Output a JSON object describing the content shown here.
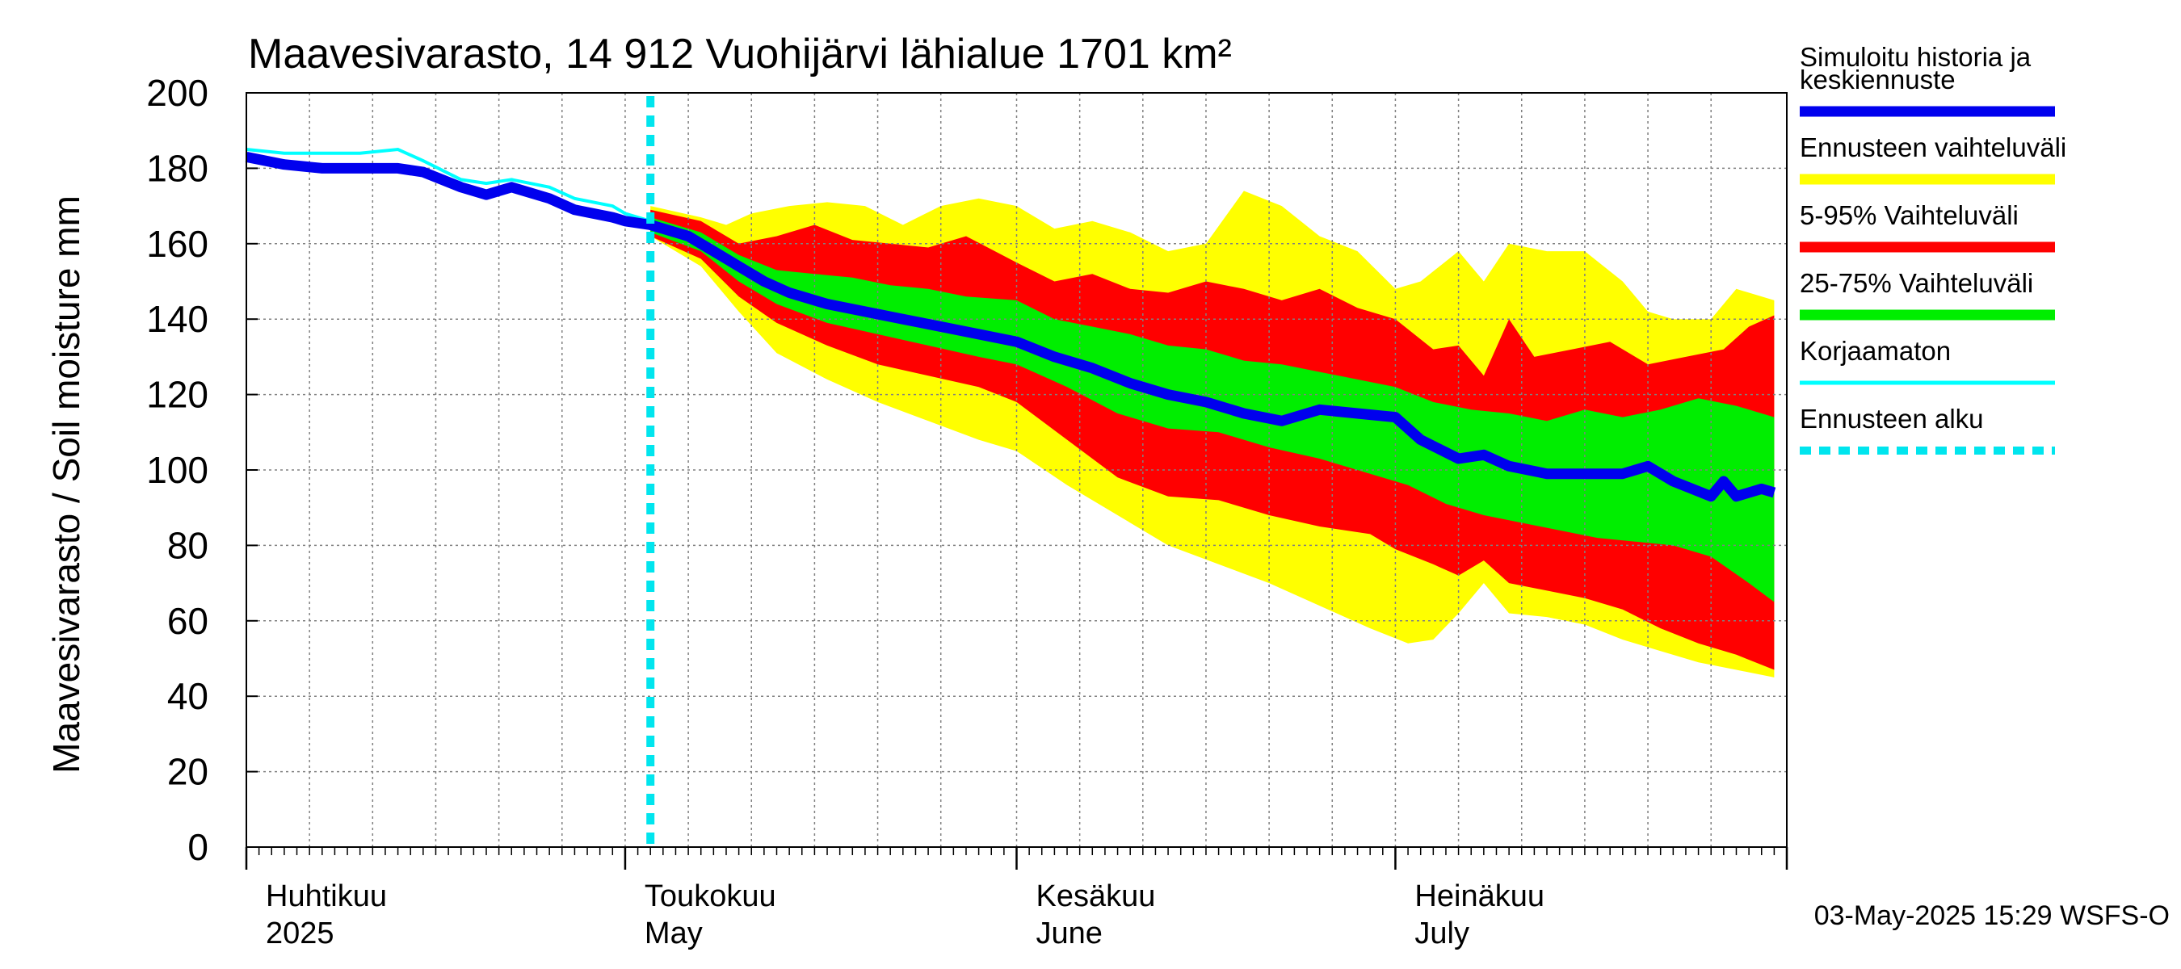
{
  "chart_data": {
    "type": "area",
    "title": "Maavesivarasto, 14 912 Vuohijärvi lähialue 1701 km²",
    "ylabel": "Maavesivarasto / Soil moisture   mm",
    "ylim": [
      0,
      200
    ],
    "yticks": [
      0,
      20,
      40,
      60,
      80,
      100,
      120,
      140,
      160,
      180,
      200
    ],
    "x_start": "2025-04-01",
    "x_end": "2025-07-31",
    "month_labels": [
      {
        "date": "2025-04-01",
        "fi": "Huhtikuu",
        "en": "2025"
      },
      {
        "date": "2025-05-01",
        "fi": "Toukokuu",
        "en": "May"
      },
      {
        "date": "2025-06-01",
        "fi": "Kesäkuu",
        "en": "June"
      },
      {
        "date": "2025-07-01",
        "fi": "Heinäkuu",
        "en": "July"
      }
    ],
    "forecast_start": "2025-05-03",
    "footer": "03-May-2025 15:29 WSFS-O",
    "legend": {
      "simulated": "Simuloitu historia ja keskiennuste",
      "range": "Ennusteen vaihteluväli",
      "p5_95": "5-95% Vaihteluväli",
      "p25_75": "25-75% Vaihteluväli",
      "uncorrected": "Korjaamaton",
      "forecast_start": "Ennusteen alku"
    },
    "colors": {
      "simulated": "#0000ee",
      "range": "#ffff00",
      "p5_95": "#ff0000",
      "p25_75": "#00ee00",
      "uncorrected": "#00ffff",
      "forecast_start": "#00e5ee",
      "grid": "#808080"
    },
    "series": [
      {
        "name": "Simuloitu historia ja keskiennuste",
        "points": [
          [
            "2025-04-01",
            183
          ],
          [
            "2025-04-04",
            181
          ],
          [
            "2025-04-07",
            180
          ],
          [
            "2025-04-10",
            180
          ],
          [
            "2025-04-13",
            180
          ],
          [
            "2025-04-15",
            179
          ],
          [
            "2025-04-18",
            175
          ],
          [
            "2025-04-20",
            173
          ],
          [
            "2025-04-22",
            175
          ],
          [
            "2025-04-25",
            172
          ],
          [
            "2025-04-27",
            169
          ],
          [
            "2025-04-30",
            167
          ],
          [
            "2025-05-01",
            166
          ],
          [
            "2025-05-03",
            165
          ],
          [
            "2025-05-06",
            162
          ],
          [
            "2025-05-08",
            158
          ],
          [
            "2025-05-10",
            154
          ],
          [
            "2025-05-12",
            150
          ],
          [
            "2025-05-14",
            147
          ],
          [
            "2025-05-17",
            144
          ],
          [
            "2025-05-20",
            142
          ],
          [
            "2025-05-23",
            140
          ],
          [
            "2025-05-26",
            138
          ],
          [
            "2025-05-29",
            136
          ],
          [
            "2025-06-01",
            134
          ],
          [
            "2025-06-04",
            130
          ],
          [
            "2025-06-07",
            127
          ],
          [
            "2025-06-10",
            123
          ],
          [
            "2025-06-13",
            120
          ],
          [
            "2025-06-16",
            118
          ],
          [
            "2025-06-19",
            115
          ],
          [
            "2025-06-22",
            113
          ],
          [
            "2025-06-25",
            116
          ],
          [
            "2025-06-28",
            115
          ],
          [
            "2025-07-01",
            114
          ],
          [
            "2025-07-03",
            108
          ],
          [
            "2025-07-06",
            103
          ],
          [
            "2025-07-08",
            104
          ],
          [
            "2025-07-10",
            101
          ],
          [
            "2025-07-13",
            99
          ],
          [
            "2025-07-16",
            99
          ],
          [
            "2025-07-19",
            99
          ],
          [
            "2025-07-21",
            101
          ],
          [
            "2025-07-23",
            97
          ],
          [
            "2025-07-26",
            93
          ],
          [
            "2025-07-27",
            97
          ],
          [
            "2025-07-28",
            93
          ],
          [
            "2025-07-30",
            95
          ],
          [
            "2025-07-31",
            94
          ]
        ]
      },
      {
        "name": "Korjaamaton",
        "points": [
          [
            "2025-04-01",
            185
          ],
          [
            "2025-04-04",
            184
          ],
          [
            "2025-04-07",
            184
          ],
          [
            "2025-04-10",
            184
          ],
          [
            "2025-04-13",
            185
          ],
          [
            "2025-04-15",
            182
          ],
          [
            "2025-04-18",
            177
          ],
          [
            "2025-04-20",
            176
          ],
          [
            "2025-04-22",
            177
          ],
          [
            "2025-04-25",
            175
          ],
          [
            "2025-04-27",
            172
          ],
          [
            "2025-04-30",
            170
          ],
          [
            "2025-05-01",
            168
          ],
          [
            "2025-05-03",
            166
          ]
        ]
      },
      {
        "name": "Ennusteen vaihteluväli",
        "upper": [
          [
            "2025-05-03",
            170
          ],
          [
            "2025-05-07",
            167
          ],
          [
            "2025-05-09",
            165
          ],
          [
            "2025-05-11",
            168
          ],
          [
            "2025-05-14",
            170
          ],
          [
            "2025-05-17",
            171
          ],
          [
            "2025-05-20",
            170
          ],
          [
            "2025-05-23",
            165
          ],
          [
            "2025-05-26",
            170
          ],
          [
            "2025-05-29",
            172
          ],
          [
            "2025-06-01",
            170
          ],
          [
            "2025-06-04",
            164
          ],
          [
            "2025-06-07",
            166
          ],
          [
            "2025-06-10",
            163
          ],
          [
            "2025-06-13",
            158
          ],
          [
            "2025-06-16",
            160
          ],
          [
            "2025-06-19",
            174
          ],
          [
            "2025-06-22",
            170
          ],
          [
            "2025-06-25",
            162
          ],
          [
            "2025-06-28",
            158
          ],
          [
            "2025-07-01",
            148
          ],
          [
            "2025-07-03",
            150
          ],
          [
            "2025-07-06",
            158
          ],
          [
            "2025-07-08",
            150
          ],
          [
            "2025-07-10",
            160
          ],
          [
            "2025-07-13",
            158
          ],
          [
            "2025-07-16",
            158
          ],
          [
            "2025-07-19",
            150
          ],
          [
            "2025-07-21",
            142
          ],
          [
            "2025-07-23",
            140
          ],
          [
            "2025-07-26",
            140
          ],
          [
            "2025-07-28",
            148
          ],
          [
            "2025-07-31",
            145
          ]
        ],
        "lower": [
          [
            "2025-05-03",
            162
          ],
          [
            "2025-05-07",
            154
          ],
          [
            "2025-05-10",
            142
          ],
          [
            "2025-05-13",
            131
          ],
          [
            "2025-05-17",
            124
          ],
          [
            "2025-05-21",
            118
          ],
          [
            "2025-05-25",
            113
          ],
          [
            "2025-05-29",
            108
          ],
          [
            "2025-06-01",
            105
          ],
          [
            "2025-06-05",
            96
          ],
          [
            "2025-06-09",
            88
          ],
          [
            "2025-06-13",
            80
          ],
          [
            "2025-06-17",
            75
          ],
          [
            "2025-06-21",
            70
          ],
          [
            "2025-06-25",
            64
          ],
          [
            "2025-06-29",
            58
          ],
          [
            "2025-07-02",
            54
          ],
          [
            "2025-07-04",
            55
          ],
          [
            "2025-07-06",
            62
          ],
          [
            "2025-07-08",
            70
          ],
          [
            "2025-07-10",
            62
          ],
          [
            "2025-07-13",
            61
          ],
          [
            "2025-07-16",
            59
          ],
          [
            "2025-07-19",
            55
          ],
          [
            "2025-07-22",
            52
          ],
          [
            "2025-07-25",
            49
          ],
          [
            "2025-07-28",
            47
          ],
          [
            "2025-07-31",
            45
          ]
        ]
      },
      {
        "name": "5-95% Vaihteluväli",
        "upper": [
          [
            "2025-05-03",
            169
          ],
          [
            "2025-05-07",
            166
          ],
          [
            "2025-05-10",
            160
          ],
          [
            "2025-05-13",
            162
          ],
          [
            "2025-05-16",
            165
          ],
          [
            "2025-05-19",
            161
          ],
          [
            "2025-05-22",
            160
          ],
          [
            "2025-05-25",
            159
          ],
          [
            "2025-05-28",
            162
          ],
          [
            "2025-06-01",
            155
          ],
          [
            "2025-06-04",
            150
          ],
          [
            "2025-06-07",
            152
          ],
          [
            "2025-06-10",
            148
          ],
          [
            "2025-06-13",
            147
          ],
          [
            "2025-06-16",
            150
          ],
          [
            "2025-06-19",
            148
          ],
          [
            "2025-06-22",
            145
          ],
          [
            "2025-06-25",
            148
          ],
          [
            "2025-06-28",
            143
          ],
          [
            "2025-07-01",
            140
          ],
          [
            "2025-07-04",
            132
          ],
          [
            "2025-07-06",
            133
          ],
          [
            "2025-07-08",
            125
          ],
          [
            "2025-07-10",
            140
          ],
          [
            "2025-07-12",
            130
          ],
          [
            "2025-07-15",
            132
          ],
          [
            "2025-07-18",
            134
          ],
          [
            "2025-07-21",
            128
          ],
          [
            "2025-07-24",
            130
          ],
          [
            "2025-07-27",
            132
          ],
          [
            "2025-07-29",
            138
          ],
          [
            "2025-07-31",
            141
          ]
        ],
        "lower": [
          [
            "2025-05-03",
            162
          ],
          [
            "2025-05-07",
            156
          ],
          [
            "2025-05-10",
            146
          ],
          [
            "2025-05-13",
            139
          ],
          [
            "2025-05-17",
            133
          ],
          [
            "2025-05-21",
            128
          ],
          [
            "2025-05-25",
            125
          ],
          [
            "2025-05-29",
            122
          ],
          [
            "2025-06-01",
            118
          ],
          [
            "2025-06-05",
            108
          ],
          [
            "2025-06-09",
            98
          ],
          [
            "2025-06-13",
            93
          ],
          [
            "2025-06-17",
            92
          ],
          [
            "2025-06-21",
            88
          ],
          [
            "2025-06-25",
            85
          ],
          [
            "2025-06-29",
            83
          ],
          [
            "2025-07-01",
            79
          ],
          [
            "2025-07-04",
            75
          ],
          [
            "2025-07-06",
            72
          ],
          [
            "2025-07-08",
            76
          ],
          [
            "2025-07-10",
            70
          ],
          [
            "2025-07-13",
            68
          ],
          [
            "2025-07-16",
            66
          ],
          [
            "2025-07-19",
            63
          ],
          [
            "2025-07-22",
            58
          ],
          [
            "2025-07-25",
            54
          ],
          [
            "2025-07-28",
            51
          ],
          [
            "2025-07-31",
            47
          ]
        ]
      },
      {
        "name": "25-75% Vaihteluväli",
        "upper": [
          [
            "2025-05-03",
            167
          ],
          [
            "2025-05-07",
            163
          ],
          [
            "2025-05-10",
            157
          ],
          [
            "2025-05-13",
            153
          ],
          [
            "2025-05-16",
            152
          ],
          [
            "2025-05-19",
            151
          ],
          [
            "2025-05-22",
            149
          ],
          [
            "2025-05-25",
            148
          ],
          [
            "2025-05-28",
            146
          ],
          [
            "2025-06-01",
            145
          ],
          [
            "2025-06-04",
            140
          ],
          [
            "2025-06-07",
            138
          ],
          [
            "2025-06-10",
            136
          ],
          [
            "2025-06-13",
            133
          ],
          [
            "2025-06-16",
            132
          ],
          [
            "2025-06-19",
            129
          ],
          [
            "2025-06-22",
            128
          ],
          [
            "2025-06-25",
            126
          ],
          [
            "2025-06-28",
            124
          ],
          [
            "2025-07-01",
            122
          ],
          [
            "2025-07-04",
            118
          ],
          [
            "2025-07-07",
            116
          ],
          [
            "2025-07-10",
            115
          ],
          [
            "2025-07-13",
            113
          ],
          [
            "2025-07-16",
            116
          ],
          [
            "2025-07-19",
            114
          ],
          [
            "2025-07-22",
            116
          ],
          [
            "2025-07-25",
            119
          ],
          [
            "2025-07-28",
            117
          ],
          [
            "2025-07-31",
            114
          ]
        ],
        "lower": [
          [
            "2025-05-03",
            163
          ],
          [
            "2025-05-07",
            158
          ],
          [
            "2025-05-10",
            150
          ],
          [
            "2025-05-13",
            144
          ],
          [
            "2025-05-17",
            139
          ],
          [
            "2025-05-21",
            136
          ],
          [
            "2025-05-25",
            133
          ],
          [
            "2025-05-29",
            130
          ],
          [
            "2025-06-01",
            128
          ],
          [
            "2025-06-05",
            122
          ],
          [
            "2025-06-09",
            115
          ],
          [
            "2025-06-13",
            111
          ],
          [
            "2025-06-17",
            110
          ],
          [
            "2025-06-21",
            106
          ],
          [
            "2025-06-25",
            103
          ],
          [
            "2025-06-29",
            99
          ],
          [
            "2025-07-02",
            96
          ],
          [
            "2025-07-05",
            91
          ],
          [
            "2025-07-08",
            88
          ],
          [
            "2025-07-11",
            86
          ],
          [
            "2025-07-14",
            84
          ],
          [
            "2025-07-17",
            82
          ],
          [
            "2025-07-20",
            81
          ],
          [
            "2025-07-23",
            80
          ],
          [
            "2025-07-26",
            77
          ],
          [
            "2025-07-29",
            70
          ],
          [
            "2025-07-31",
            65
          ]
        ]
      }
    ]
  }
}
